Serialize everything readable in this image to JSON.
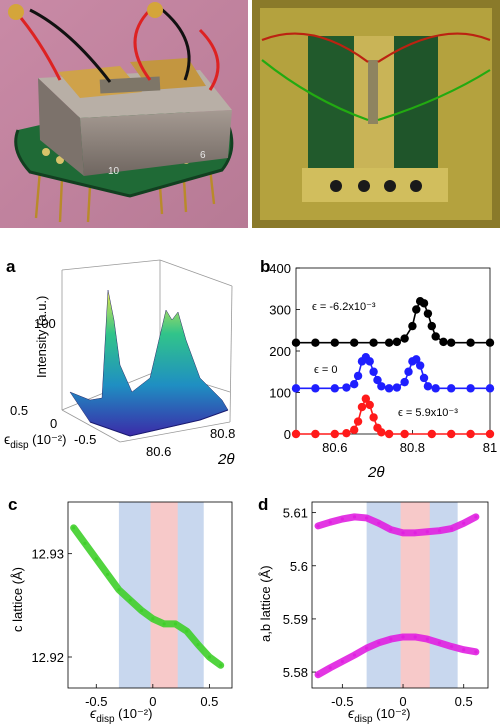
{
  "photos": {
    "left": {
      "pin_labels": [
        "10",
        "6"
      ]
    },
    "right": {}
  },
  "colors": {
    "black_series": "#000000",
    "blue_series": "#1f1fff",
    "red_series": "#ff1a1a",
    "green_trace": "#3fcf2a",
    "magenta_trace": "#e020e0",
    "blue_band": "#c8d7ee",
    "red_band": "#f7c9c9"
  },
  "panel_a": {
    "label": "a",
    "ylabel": "Intensity (a.u.)",
    "ytick": "100",
    "xlabel_main": "ϵ",
    "xlabel_sub": "disp",
    "xlabel_unit": " (10⁻²)",
    "xticks": [
      "0.5",
      "0",
      "-0.5"
    ],
    "ttick": [
      "80.8",
      "80.6"
    ],
    "tlabel": "2θ"
  },
  "chart_data": [
    {
      "type": "scatter",
      "panel": "b",
      "x": [
        80.62,
        80.64,
        80.66,
        80.67,
        80.68,
        80.69,
        80.7,
        80.72,
        80.74
      ],
      "series": [
        {
          "label": "ϵ = -6.2x10⁻³",
          "x": [
            80.5,
            80.55,
            80.6,
            80.65,
            80.7,
            80.74,
            80.76,
            80.78,
            80.8,
            80.81,
            80.82,
            80.83,
            80.84,
            80.85,
            80.86,
            80.88,
            80.9,
            80.95,
            81.0
          ],
          "y": [
            220,
            220,
            220,
            220,
            220,
            220,
            222,
            230,
            260,
            300,
            320,
            315,
            290,
            260,
            235,
            222,
            220,
            220,
            220
          ]
        },
        {
          "label": "ϵ = 0",
          "x": [
            80.5,
            80.55,
            80.6,
            80.63,
            80.65,
            80.66,
            80.67,
            80.68,
            80.69,
            80.7,
            80.71,
            80.72,
            80.74,
            80.76,
            80.78,
            80.79,
            80.8,
            80.81,
            80.82,
            80.83,
            80.84,
            80.86,
            80.9,
            80.95,
            81.0
          ],
          "y": [
            110,
            110,
            110,
            112,
            120,
            140,
            175,
            185,
            175,
            150,
            130,
            115,
            110,
            112,
            125,
            150,
            175,
            180,
            165,
            135,
            115,
            110,
            110,
            110,
            110
          ]
        },
        {
          "label": "ϵ = 5.9x10⁻³",
          "x": [
            80.5,
            80.55,
            80.6,
            80.63,
            80.65,
            80.66,
            80.67,
            80.68,
            80.69,
            80.7,
            80.71,
            80.72,
            80.74,
            80.78,
            80.85,
            80.9,
            80.95,
            81.0
          ],
          "y": [
            0,
            0,
            0,
            2,
            10,
            30,
            65,
            85,
            70,
            40,
            15,
            4,
            0,
            0,
            0,
            0,
            0,
            0
          ]
        }
      ],
      "xticks": [
        "80.6",
        "80.8",
        "81"
      ],
      "yticks": [
        "0",
        "100",
        "200",
        "300",
        "400"
      ],
      "xlabel": "2θ",
      "label": "b",
      "xlim": [
        80.5,
        81.0
      ],
      "ylim": [
        0,
        400
      ]
    },
    {
      "type": "line",
      "panel": "c",
      "label": "c",
      "ylabel": "c lattice (Å)",
      "xlabel_main": "ϵ",
      "xlabel_sub": "disp",
      "xlabel_unit": " (10⁻²)",
      "xticks": [
        "-0.5",
        "0",
        "0.5"
      ],
      "yticks": [
        "12.92",
        "12.93"
      ],
      "xlim": [
        -0.75,
        0.7
      ],
      "ylim": [
        12.917,
        12.935
      ],
      "bands": {
        "blue": [
          -0.3,
          0.45
        ],
        "red": [
          -0.02,
          0.22
        ]
      },
      "x": [
        -0.7,
        -0.6,
        -0.5,
        -0.4,
        -0.3,
        -0.2,
        -0.1,
        0.0,
        0.1,
        0.2,
        0.3,
        0.4,
        0.5,
        0.6
      ],
      "y": [
        12.9325,
        12.931,
        12.9295,
        12.928,
        12.9265,
        12.9255,
        12.9245,
        12.9237,
        12.9232,
        12.9232,
        12.9225,
        12.9212,
        12.92,
        12.9192
      ]
    },
    {
      "type": "line",
      "panel": "d",
      "label": "d",
      "ylabel": "a,b lattice (Å)",
      "xlabel_main": "ϵ",
      "xlabel_sub": "disp",
      "xlabel_unit": " (10⁻²)",
      "xticks": [
        "-0.5",
        "0",
        "0.5"
      ],
      "yticks": [
        "5.58",
        "5.59",
        "5.6",
        "5.61"
      ],
      "xlim": [
        -0.75,
        0.7
      ],
      "ylim": [
        5.577,
        5.612
      ],
      "bands": {
        "blue": [
          -0.3,
          0.45
        ],
        "red": [
          -0.02,
          0.22
        ]
      },
      "series": [
        {
          "x": [
            -0.7,
            -0.6,
            -0.5,
            -0.4,
            -0.3,
            -0.2,
            -0.1,
            0.0,
            0.1,
            0.2,
            0.3,
            0.4,
            0.5,
            0.6
          ],
          "y": [
            5.6075,
            5.6082,
            5.6088,
            5.6092,
            5.609,
            5.608,
            5.6068,
            5.6062,
            5.6062,
            5.6064,
            5.6066,
            5.607,
            5.608,
            5.6092
          ]
        },
        {
          "x": [
            -0.7,
            -0.6,
            -0.5,
            -0.4,
            -0.3,
            -0.2,
            -0.1,
            0.0,
            0.1,
            0.2,
            0.3,
            0.4,
            0.5,
            0.6
          ],
          "y": [
            5.5795,
            5.5808,
            5.582,
            5.5832,
            5.5845,
            5.5855,
            5.5862,
            5.5866,
            5.5866,
            5.5862,
            5.5855,
            5.5848,
            5.5842,
            5.5838
          ]
        }
      ]
    }
  ]
}
